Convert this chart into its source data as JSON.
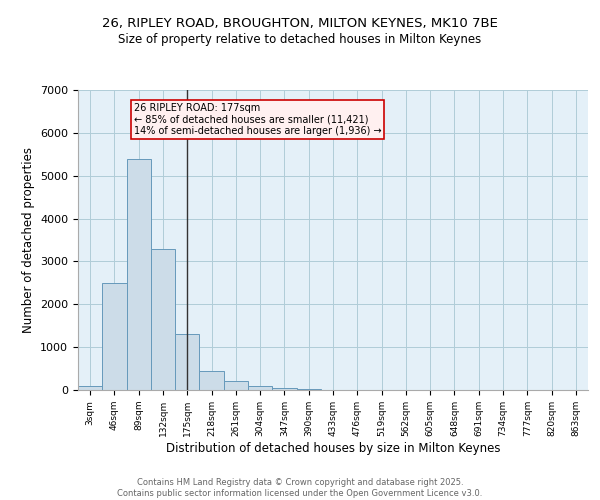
{
  "title_line1": "26, RIPLEY ROAD, BROUGHTON, MILTON KEYNES, MK10 7BE",
  "title_line2": "Size of property relative to detached houses in Milton Keynes",
  "xlabel": "Distribution of detached houses by size in Milton Keynes",
  "ylabel": "Number of detached properties",
  "categories": [
    "3sqm",
    "46sqm",
    "89sqm",
    "132sqm",
    "175sqm",
    "218sqm",
    "261sqm",
    "304sqm",
    "347sqm",
    "390sqm",
    "433sqm",
    "476sqm",
    "519sqm",
    "562sqm",
    "605sqm",
    "648sqm",
    "691sqm",
    "734sqm",
    "777sqm",
    "820sqm",
    "863sqm"
  ],
  "values": [
    100,
    2500,
    5400,
    3300,
    1300,
    450,
    200,
    90,
    50,
    20,
    5,
    2,
    1,
    0,
    0,
    0,
    0,
    0,
    0,
    0,
    0
  ],
  "bar_color": "#ccdce8",
  "bar_edge_color": "#6699bb",
  "vline_x_index": 4,
  "vline_color": "#333333",
  "annotation_line1": "26 RIPLEY ROAD: 177sqm",
  "annotation_line2": "← 85% of detached houses are smaller (11,421)",
  "annotation_line3": "14% of semi-detached houses are larger (1,936) →",
  "annotation_box_facecolor": "#fff0f0",
  "annotation_box_edgecolor": "#cc0000",
  "ylim": [
    0,
    7000
  ],
  "yticks": [
    0,
    1000,
    2000,
    3000,
    4000,
    5000,
    6000,
    7000
  ],
  "grid_color": "#b0ccd8",
  "background_color": "#e4f0f8",
  "footer_line1": "Contains HM Land Registry data © Crown copyright and database right 2025.",
  "footer_line2": "Contains public sector information licensed under the Open Government Licence v3.0."
}
